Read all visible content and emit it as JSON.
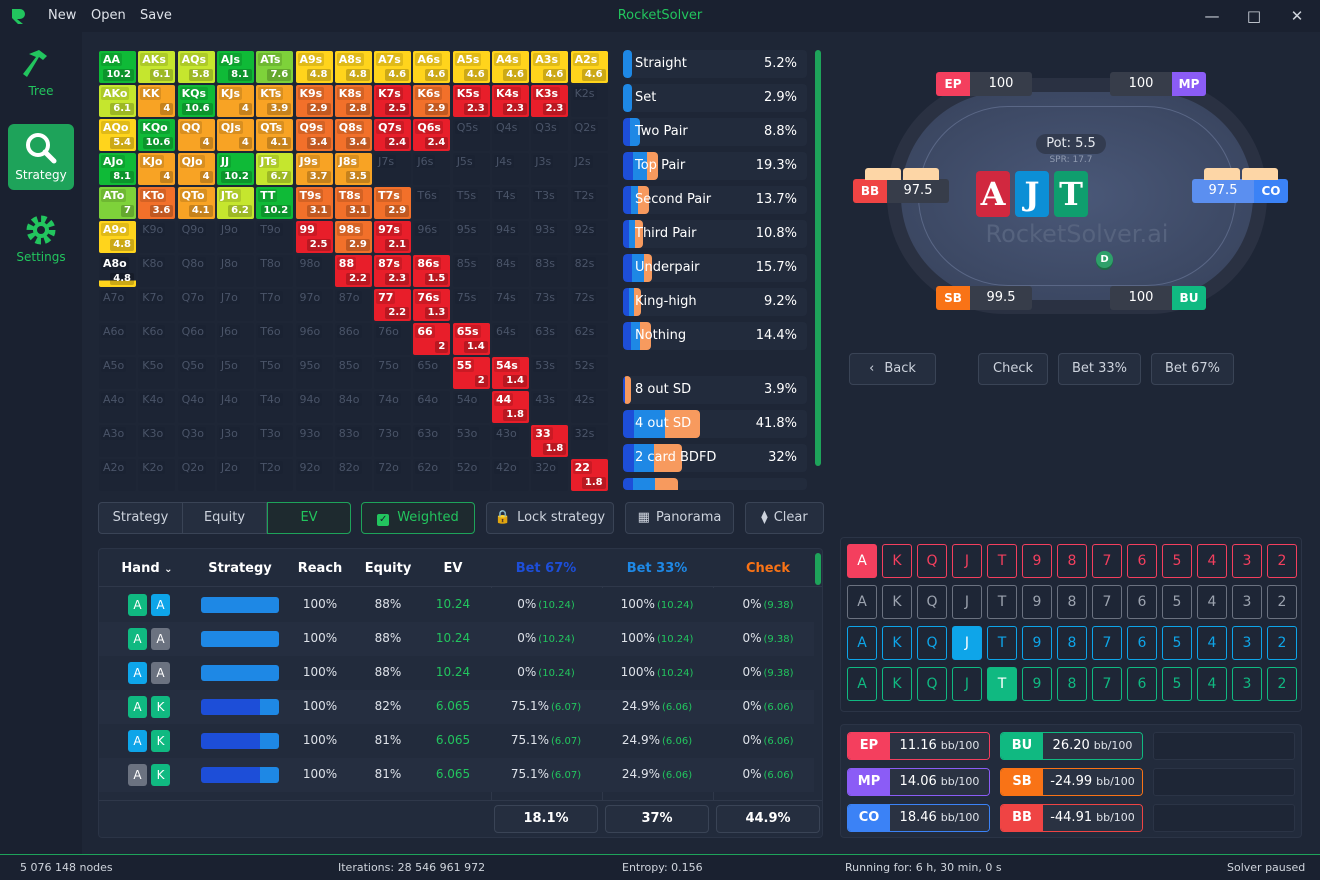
{
  "titlebar": {
    "title": "RocketSolver",
    "menu": [
      "New",
      "Open",
      "Save"
    ]
  },
  "sidebar": [
    {
      "label": "Tree",
      "icon": "hammer-icon"
    },
    {
      "label": "Strategy",
      "icon": "search-icon",
      "active": true
    },
    {
      "label": "Settings",
      "icon": "gear-icon"
    }
  ],
  "colors": {
    "g": "#0fba37",
    "lg": "#7ed23a",
    "l": "#c5e62e",
    "y": "#ffd41c",
    "o": "#f8a324",
    "do": "#f2702a",
    "r": "#e81e2a",
    "accent": "#22c55e"
  },
  "matrix": [
    [
      [
        "AA",
        "10.2",
        "g"
      ],
      [
        "AKs",
        "6.1",
        "l"
      ],
      [
        "AQs",
        "5.8",
        "l"
      ],
      [
        "AJs",
        "8.1",
        "g"
      ],
      [
        "ATs",
        "7.6",
        "lg"
      ],
      [
        "A9s",
        "4.8",
        "y"
      ],
      [
        "A8s",
        "4.8",
        "y"
      ],
      [
        "A7s",
        "4.6",
        "y"
      ],
      [
        "A6s",
        "4.6",
        "y"
      ],
      [
        "A5s",
        "4.6",
        "y"
      ],
      [
        "A4s",
        "4.6",
        "y"
      ],
      [
        "A3s",
        "4.6",
        "y"
      ],
      [
        "A2s",
        "4.6",
        "y"
      ]
    ],
    [
      [
        "AKo",
        "6.1",
        "l"
      ],
      [
        "KK",
        "4",
        "o"
      ],
      [
        "KQs",
        "10.6",
        "g"
      ],
      [
        "KJs",
        "4",
        "o"
      ],
      [
        "KTs",
        "3.9",
        "o"
      ],
      [
        "K9s",
        "2.9",
        "do"
      ],
      [
        "K8s",
        "2.8",
        "do"
      ],
      [
        "K7s",
        "2.5",
        "r"
      ],
      [
        "K6s",
        "2.9",
        "do"
      ],
      [
        "K5s",
        "2.3",
        "r"
      ],
      [
        "K4s",
        "2.3",
        "r"
      ],
      [
        "K3s",
        "2.3",
        "r"
      ],
      [
        "K2s"
      ]
    ],
    [
      [
        "AQo",
        "5.4",
        "y"
      ],
      [
        "KQo",
        "10.6",
        "g"
      ],
      [
        "QQ",
        "4",
        "o"
      ],
      [
        "QJs",
        "4",
        "o"
      ],
      [
        "QTs",
        "4.1",
        "o"
      ],
      [
        "Q9s",
        "3.4",
        "do"
      ],
      [
        "Q8s",
        "3.4",
        "do"
      ],
      [
        "Q7s",
        "2.4",
        "r"
      ],
      [
        "Q6s",
        "2.4",
        "r"
      ],
      [
        "Q5s"
      ],
      [
        "Q4s"
      ],
      [
        "Q3s"
      ],
      [
        "Q2s"
      ]
    ],
    [
      [
        "AJo",
        "8.1",
        "g"
      ],
      [
        "KJo",
        "4",
        "o"
      ],
      [
        "QJo",
        "4",
        "o"
      ],
      [
        "JJ",
        "10.2",
        "g"
      ],
      [
        "JTs",
        "6.7",
        "l"
      ],
      [
        "J9s",
        "3.7",
        "o"
      ],
      [
        "J8s",
        "3.5",
        "o"
      ],
      [
        "J7s"
      ],
      [
        "J6s"
      ],
      [
        "J5s"
      ],
      [
        "J4s"
      ],
      [
        "J3s"
      ],
      [
        "J2s"
      ]
    ],
    [
      [
        "ATo",
        "7",
        "lg"
      ],
      [
        "KTo",
        "3.6",
        "do"
      ],
      [
        "QTo",
        "4.1",
        "o"
      ],
      [
        "JTo",
        "6.2",
        "l"
      ],
      [
        "TT",
        "10.2",
        "g"
      ],
      [
        "T9s",
        "3.1",
        "do"
      ],
      [
        "T8s",
        "3.1",
        "do"
      ],
      [
        "T7s",
        "2.9",
        "do"
      ],
      [
        "T6s"
      ],
      [
        "T5s"
      ],
      [
        "T4s"
      ],
      [
        "T3s"
      ],
      [
        "T2s"
      ]
    ],
    [
      [
        "A9o",
        "4.8",
        "y"
      ],
      [
        "K9o"
      ],
      [
        "Q9o"
      ],
      [
        "J9o"
      ],
      [
        "T9o"
      ],
      [
        "99",
        "2.5",
        "r"
      ],
      [
        "98s",
        "2.9",
        "do"
      ],
      [
        "97s",
        "2.1",
        "r"
      ],
      [
        "96s"
      ],
      [
        "95s"
      ],
      [
        "94s"
      ],
      [
        "93s"
      ],
      [
        "92s"
      ]
    ],
    [
      [
        "A8o",
        "4.8",
        "p"
      ],
      [
        "K8o"
      ],
      [
        "Q8o"
      ],
      [
        "J8o"
      ],
      [
        "T8o"
      ],
      [
        "98o"
      ],
      [
        "88",
        "2.2",
        "r"
      ],
      [
        "87s",
        "2.3",
        "r"
      ],
      [
        "86s",
        "1.5",
        "r"
      ],
      [
        "85s"
      ],
      [
        "84s"
      ],
      [
        "83s"
      ],
      [
        "82s"
      ]
    ],
    [
      [
        "A7o"
      ],
      [
        "K7o"
      ],
      [
        "Q7o"
      ],
      [
        "J7o"
      ],
      [
        "T7o"
      ],
      [
        "97o"
      ],
      [
        "87o"
      ],
      [
        "77",
        "2.2",
        "r"
      ],
      [
        "76s",
        "1.3",
        "r"
      ],
      [
        "75s"
      ],
      [
        "74s"
      ],
      [
        "73s"
      ],
      [
        "72s"
      ]
    ],
    [
      [
        "A6o"
      ],
      [
        "K6o"
      ],
      [
        "Q6o"
      ],
      [
        "J6o"
      ],
      [
        "T6o"
      ],
      [
        "96o"
      ],
      [
        "86o"
      ],
      [
        "76o"
      ],
      [
        "66",
        "2",
        "r"
      ],
      [
        "65s",
        "1.4",
        "r"
      ],
      [
        "64s"
      ],
      [
        "63s"
      ],
      [
        "62s"
      ]
    ],
    [
      [
        "A5o"
      ],
      [
        "K5o"
      ],
      [
        "Q5o"
      ],
      [
        "J5o"
      ],
      [
        "T5o"
      ],
      [
        "95o"
      ],
      [
        "85o"
      ],
      [
        "75o"
      ],
      [
        "65o"
      ],
      [
        "55",
        "2",
        "r"
      ],
      [
        "54s",
        "1.4",
        "r"
      ],
      [
        "53s"
      ],
      [
        "52s"
      ]
    ],
    [
      [
        "A4o"
      ],
      [
        "K4o"
      ],
      [
        "Q4o"
      ],
      [
        "J4o"
      ],
      [
        "T4o"
      ],
      [
        "94o"
      ],
      [
        "84o"
      ],
      [
        "74o"
      ],
      [
        "64o"
      ],
      [
        "54o"
      ],
      [
        "44",
        "1.8",
        "r"
      ],
      [
        "43s"
      ],
      [
        "42s"
      ]
    ],
    [
      [
        "A3o"
      ],
      [
        "K3o"
      ],
      [
        "Q3o"
      ],
      [
        "J3o"
      ],
      [
        "T3o"
      ],
      [
        "93o"
      ],
      [
        "83o"
      ],
      [
        "73o"
      ],
      [
        "63o"
      ],
      [
        "53o"
      ],
      [
        "43o"
      ],
      [
        "33",
        "1.8",
        "r"
      ],
      [
        "32s"
      ]
    ],
    [
      [
        "A2o"
      ],
      [
        "K2o"
      ],
      [
        "Q2o"
      ],
      [
        "J2o"
      ],
      [
        "T2o"
      ],
      [
        "92o"
      ],
      [
        "82o"
      ],
      [
        "72o"
      ],
      [
        "62o"
      ],
      [
        "52o"
      ],
      [
        "42o"
      ],
      [
        "32o"
      ],
      [
        "22",
        "1.8",
        "r"
      ]
    ]
  ],
  "stats": [
    {
      "name": "Straight",
      "pct": "5.2%",
      "mix": [
        0,
        1,
        0
      ],
      "fill": 0.05
    },
    {
      "name": "Set",
      "pct": "2.9%",
      "mix": [
        0,
        1,
        0
      ],
      "fill": 0.05
    },
    {
      "name": "Two Pair",
      "pct": "8.8%",
      "mix": [
        0.4,
        0.6,
        0
      ],
      "fill": 0.09
    },
    {
      "name": "Top Pair",
      "pct": "19.3%",
      "mix": [
        0.3,
        0.4,
        0.3
      ],
      "fill": 0.19
    },
    {
      "name": "Second Pair",
      "pct": "13.7%",
      "mix": [
        0.3,
        0.3,
        0.4
      ],
      "fill": 0.14
    },
    {
      "name": "Third Pair",
      "pct": "10.8%",
      "mix": [
        0.3,
        0.3,
        0.4
      ],
      "fill": 0.11
    },
    {
      "name": "Underpair",
      "pct": "15.7%",
      "mix": [
        0.3,
        0.4,
        0.3
      ],
      "fill": 0.16
    },
    {
      "name": "King-high",
      "pct": "9.2%",
      "mix": [
        0.3,
        0.3,
        0.4
      ],
      "fill": 0.1
    },
    {
      "name": "Nothing",
      "pct": "14.4%",
      "mix": [
        0.3,
        0.3,
        0.4
      ],
      "fill": 0.15
    }
  ],
  "stats2": [
    {
      "name": "8 out SD",
      "pct": "3.9%",
      "mix": [
        0.3,
        0,
        0.7
      ],
      "fill": 0.04
    },
    {
      "name": "4 out SD",
      "pct": "41.8%",
      "mix": [
        0.14,
        0.4,
        0.46
      ],
      "fill": 0.42
    },
    {
      "name": "2 card BDFD",
      "pct": "32%",
      "mix": [
        0.18,
        0.35,
        0.47
      ],
      "fill": 0.32
    },
    {
      "name": "",
      "pct": "",
      "mix": [
        0.18,
        0.4,
        0.42
      ],
      "fill": 0.3
    }
  ],
  "view_tabs": [
    "Strategy",
    "Equity",
    "EV"
  ],
  "toolbar": {
    "weighted": "Weighted",
    "lock": "Lock strategy",
    "panorama": "Panorama",
    "clear": "Clear"
  },
  "table": {
    "headers": {
      "hand": "Hand",
      "strategy": "Strategy",
      "reach": "Reach",
      "equity": "Equity",
      "ev": "EV",
      "bet67": "Bet 67%",
      "bet33": "Bet 33%",
      "check": "Check"
    },
    "rows": [
      {
        "c1": "A",
        "c1c": "#10b981",
        "c2": "A",
        "c2c": "#0ea5e9",
        "mix": [
          0,
          1,
          0
        ],
        "reach": "100%",
        "equity": "88%",
        "ev": "10.24",
        "b67": "0%",
        "b67ev": "(10.24)",
        "b33": "100%",
        "b33ev": "(10.24)",
        "chk": "0%",
        "chkev": "(9.38)"
      },
      {
        "c1": "A",
        "c1c": "#10b981",
        "c2": "A",
        "c2c": "#6b7280",
        "mix": [
          0,
          1,
          0
        ],
        "reach": "100%",
        "equity": "88%",
        "ev": "10.24",
        "b67": "0%",
        "b67ev": "(10.24)",
        "b33": "100%",
        "b33ev": "(10.24)",
        "chk": "0%",
        "chkev": "(9.38)"
      },
      {
        "c1": "A",
        "c1c": "#0ea5e9",
        "c2": "A",
        "c2c": "#6b7280",
        "mix": [
          0,
          1,
          0
        ],
        "reach": "100%",
        "equity": "88%",
        "ev": "10.24",
        "b67": "0%",
        "b67ev": "(10.24)",
        "b33": "100%",
        "b33ev": "(10.24)",
        "chk": "0%",
        "chkev": "(9.38)"
      },
      {
        "c1": "A",
        "c1c": "#10b981",
        "c2": "K",
        "c2c": "#10b981",
        "mix": [
          0.751,
          0.249,
          0
        ],
        "reach": "100%",
        "equity": "82%",
        "ev": "6.065",
        "b67": "75.1%",
        "b67ev": "(6.07)",
        "b33": "24.9%",
        "b33ev": "(6.06)",
        "chk": "0%",
        "chkev": "(6.06)"
      },
      {
        "c1": "A",
        "c1c": "#0ea5e9",
        "c2": "K",
        "c2c": "#10b981",
        "mix": [
          0.751,
          0.249,
          0
        ],
        "reach": "100%",
        "equity": "81%",
        "ev": "6.065",
        "b67": "75.1%",
        "b67ev": "(6.07)",
        "b33": "24.9%",
        "b33ev": "(6.06)",
        "chk": "0%",
        "chkev": "(6.06)"
      },
      {
        "c1": "A",
        "c1c": "#6b7280",
        "c2": "K",
        "c2c": "#10b981",
        "mix": [
          0.751,
          0.249,
          0
        ],
        "reach": "100%",
        "equity": "81%",
        "ev": "6.065",
        "b67": "75.1%",
        "b67ev": "(6.07)",
        "b33": "24.9%",
        "b33ev": "(6.06)",
        "chk": "0%",
        "chkev": "(6.06)"
      }
    ],
    "totals": {
      "bet67": "18.1%",
      "bet33": "37%",
      "check": "44.9%"
    },
    "action_colors": {
      "bet67": "#1d4ed8",
      "bet33": "#1e88e5",
      "check": "#f97316"
    }
  },
  "table_view": {
    "pot": "Pot: 5.5",
    "spr": "SPR: 17.7",
    "watermark": "RocketSolver.ai",
    "dealer": "D",
    "board": [
      {
        "rank": "A",
        "color": "#d1283f"
      },
      {
        "rank": "J",
        "color": "#0c8fd6"
      },
      {
        "rank": "T",
        "color": "#0f9e6e"
      }
    ],
    "seats": {
      "EP": {
        "stack": "100",
        "color": "#f43f5e"
      },
      "MP": {
        "stack": "100",
        "color": "#8b5cf6"
      },
      "BB": {
        "stack": "97.5",
        "color": "#ef4444"
      },
      "CO": {
        "stack": "97.5",
        "color": "#3b82f6"
      },
      "SB": {
        "stack": "99.5",
        "color": "#f97316"
      },
      "BU": {
        "stack": "100",
        "color": "#10b981"
      }
    }
  },
  "actions": {
    "back": "Back",
    "check": "Check",
    "bet33": "Bet 33%",
    "bet67": "Bet 67%"
  },
  "card_picker": {
    "ranks": [
      "A",
      "K",
      "Q",
      "J",
      "T",
      "9",
      "8",
      "7",
      "6",
      "5",
      "4",
      "3",
      "2"
    ],
    "rows": [
      {
        "color": "#f43f5e",
        "selected": "A"
      },
      {
        "color": "#6b7280",
        "selected": ""
      },
      {
        "color": "#0ea5e9",
        "selected": "J"
      },
      {
        "color": "#10b981",
        "selected": "T"
      }
    ]
  },
  "player_ev": [
    {
      "pos": "EP",
      "value": "11.16",
      "unit": "bb/100",
      "color": "#f43f5e"
    },
    {
      "pos": "MP",
      "value": "14.06",
      "unit": "bb/100",
      "color": "#8b5cf6"
    },
    {
      "pos": "CO",
      "value": "18.46",
      "unit": "bb/100",
      "color": "#3b82f6"
    },
    {
      "pos": "BU",
      "value": "26.20",
      "unit": "bb/100",
      "color": "#10b981"
    },
    {
      "pos": "SB",
      "value": "-24.99",
      "unit": "bb/100",
      "color": "#f97316"
    },
    {
      "pos": "BB",
      "value": "-44.91",
      "unit": "bb/100",
      "color": "#ef4444"
    }
  ],
  "status": {
    "nodes": "5 076 148 nodes",
    "iterations": "Iterations: 28 546 961 972",
    "entropy": "Entropy: 0.156",
    "running": "Running for: 6 h, 30 min, 0 s",
    "state": "Solver paused"
  }
}
